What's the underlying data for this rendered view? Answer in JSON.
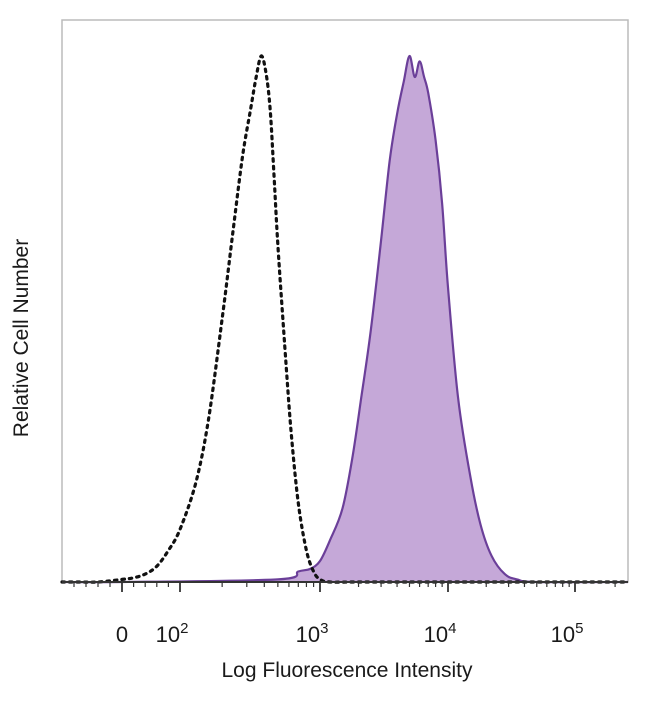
{
  "chart_data": {
    "type": "area",
    "title": "",
    "xlabel": "Log Fluorescence Intensity",
    "ylabel": "Relative Cell Number",
    "x_scale": "biexponential",
    "xlim": [
      -1000,
      250000
    ],
    "ylim": [
      0,
      100
    ],
    "x_ticks": [
      {
        "value": 0,
        "label": "0"
      },
      {
        "value": 100,
        "label": "10",
        "sup": "2"
      },
      {
        "value": 1000,
        "label": "10",
        "sup": "3"
      },
      {
        "value": 10000,
        "label": "10",
        "sup": "4"
      },
      {
        "value": 100000,
        "label": "10",
        "sup": "5"
      }
    ],
    "grid": false,
    "legend": "none",
    "colors": {
      "stained_fill": "#c5a8d8",
      "stained_line": "#6b3f99",
      "control_line": "#111111",
      "axis": "#333333",
      "frame": "#bbbbbb"
    },
    "series": [
      {
        "style": "dotted-outline",
        "x": [
          -1000,
          -700,
          -400,
          0,
          20,
          40,
          60,
          80,
          100,
          130,
          160,
          200,
          240,
          280,
          320,
          350,
          380,
          410,
          440,
          470,
          500,
          560,
          620,
          700,
          800,
          900,
          1000,
          1200,
          2000,
          10000,
          250000
        ],
        "y": [
          0,
          0,
          0,
          0.5,
          0.8,
          1.5,
          3,
          6,
          10,
          19,
          31,
          50,
          67,
          81,
          90,
          96,
          100,
          97,
          90,
          77,
          64,
          45,
          29,
          15,
          6,
          2,
          0.5,
          0,
          0,
          0,
          0
        ]
      },
      {
        "style": "filled",
        "x": [
          -1000,
          0,
          500,
          700,
          850,
          1000,
          1200,
          1500,
          1800,
          2100,
          2500,
          3000,
          3500,
          4000,
          4500,
          5000,
          5500,
          6000,
          6500,
          7000,
          8000,
          9000,
          10000,
          12000,
          15000,
          18000,
          22000,
          28000,
          35000,
          50000,
          250000
        ],
        "y": [
          0,
          0,
          0.5,
          2,
          2.5,
          4,
          8,
          14,
          24,
          35,
          48,
          65,
          80,
          89,
          95,
          100,
          96,
          99,
          96,
          93,
          84,
          72,
          56,
          35,
          20,
          11,
          5,
          1.5,
          0.5,
          0,
          0
        ]
      }
    ]
  }
}
